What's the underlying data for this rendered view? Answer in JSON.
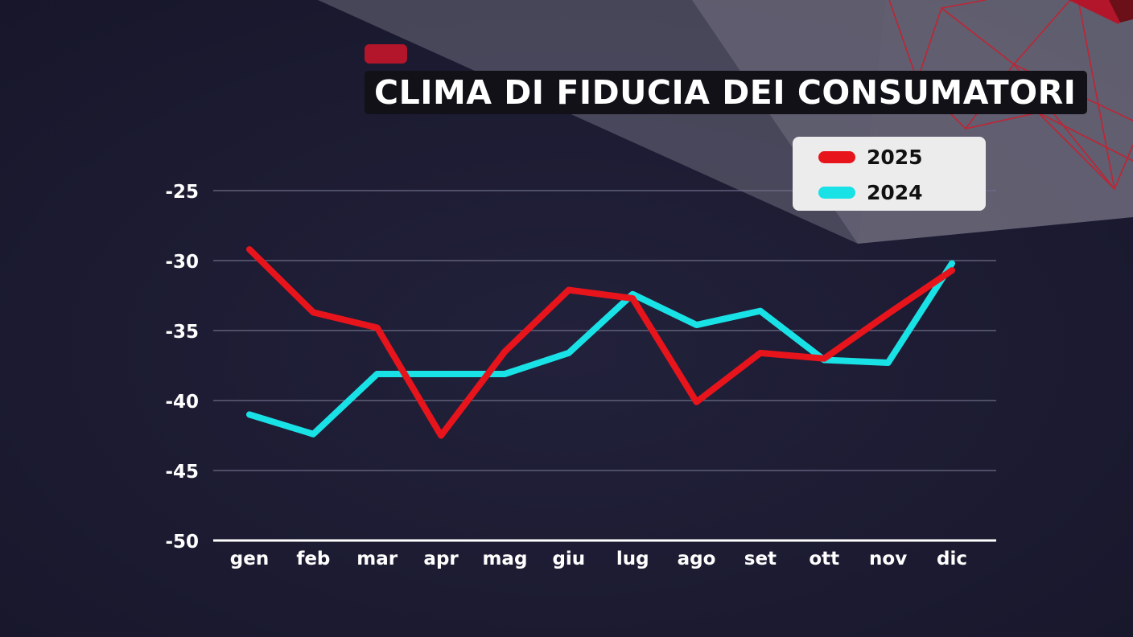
{
  "chart_data": {
    "type": "line",
    "title": "CLIMA DI FIDUCIA DEI CONSUMATORI",
    "categories": [
      "gen",
      "feb",
      "mar",
      "apr",
      "mag",
      "giu",
      "lug",
      "ago",
      "set",
      "ott",
      "nov",
      "dic"
    ],
    "series": [
      {
        "name": "2025",
        "color": "#e8141c",
        "values": [
          -29.2,
          -33.7,
          -34.8,
          -42.5,
          -36.5,
          -32.1,
          -32.7,
          -40.1,
          -36.6,
          -37.0,
          -33.8,
          -30.7
        ]
      },
      {
        "name": "2024",
        "color": "#19e2e6",
        "values": [
          -41.0,
          -42.4,
          -38.1,
          -38.1,
          -38.1,
          -36.6,
          -32.4,
          -34.6,
          -33.6,
          -37.1,
          -37.3,
          -30.2
        ]
      }
    ],
    "yticks": [
      -25,
      -30,
      -35,
      -40,
      -45,
      -50
    ],
    "ylim": [
      -50,
      -25
    ],
    "grid": true,
    "legend_position": "top-right",
    "xlabel": "",
    "ylabel": ""
  }
}
